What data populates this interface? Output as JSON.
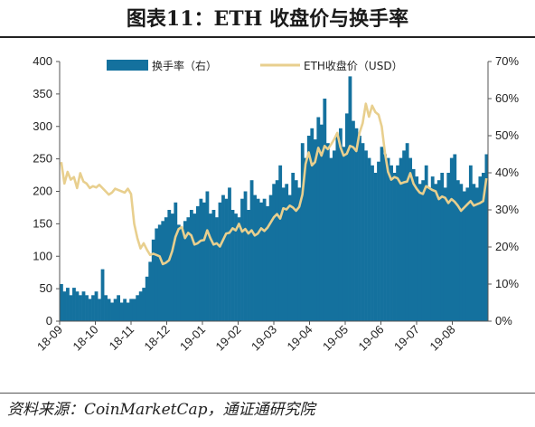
{
  "title": "图表11：ETH 收盘价与换手率",
  "source": "资料来源：CoinMarketCap，通证通研究院",
  "colors": {
    "bars": "#14719e",
    "line": "#e8cf8e",
    "axis": "#555555"
  },
  "chart_data": {
    "type": "bar+line",
    "x_tick_labels": [
      "18-09",
      "18-10",
      "18-11",
      "18-12",
      "19-01",
      "19-02",
      "19-03",
      "19-04",
      "19-05",
      "19-06",
      "19-07",
      "19-08"
    ],
    "left_axis": {
      "ticks": [
        "0",
        "50",
        "100",
        "150",
        "200",
        "250",
        "300",
        "350",
        "400"
      ],
      "ylim": [
        0,
        400
      ]
    },
    "right_axis": {
      "ticks": [
        "0%",
        "10%",
        "20%",
        "30%",
        "40%",
        "50%",
        "60%",
        "70%"
      ],
      "ylim": [
        0,
        70
      ]
    },
    "legend": {
      "position": "top",
      "entries": [
        "换手率（右）",
        "ETH收盘价（USD）"
      ]
    },
    "series": [
      {
        "name": "换手率（右）",
        "axis": "right",
        "type": "bar",
        "values_pct": [
          10,
          8,
          9,
          7,
          9,
          8,
          7,
          8,
          7,
          6,
          7,
          8,
          6,
          14,
          7,
          6,
          5,
          6,
          7,
          5,
          6,
          5,
          6,
          6,
          7,
          8,
          9,
          12,
          16,
          22,
          25,
          26,
          27,
          28,
          30,
          29,
          32,
          26,
          25,
          27,
          28,
          30,
          29,
          31,
          33,
          32,
          35,
          29,
          30,
          28,
          32,
          34,
          33,
          36,
          30,
          29,
          28,
          33,
          35,
          30,
          38,
          34,
          33,
          32,
          33,
          31,
          34,
          37,
          38,
          42,
          36,
          37,
          34,
          40,
          38,
          36,
          48,
          44,
          50,
          52,
          49,
          55,
          53,
          60,
          48,
          44,
          46,
          50,
          52,
          47,
          56,
          66,
          54,
          52,
          50,
          48,
          46,
          44,
          42,
          40,
          43,
          47,
          45,
          44,
          42,
          40,
          42,
          44,
          46,
          48,
          44,
          41,
          39,
          37,
          38,
          42,
          36,
          39,
          37,
          38,
          40,
          36,
          40,
          44,
          45,
          38,
          37,
          35,
          36,
          42,
          37,
          36,
          39,
          40,
          45
        ],
        "note": "approximate values in %, read from gridlines"
      },
      {
        "name": "ETH收盘价（USD）",
        "axis": "left",
        "type": "line",
        "values": [
          245,
          212,
          230,
          218,
          222,
          205,
          228,
          215,
          212,
          205,
          208,
          206,
          210,
          205,
          200,
          195,
          198,
          204,
          202,
          200,
          198,
          204,
          196,
          150,
          128,
          112,
          120,
          110,
          102,
          104,
          102,
          100,
          88,
          90,
          94,
          108,
          130,
          142,
          145,
          128,
          136,
          132,
          118,
          120,
          124,
          125,
          140,
          128,
          118,
          120,
          115,
          125,
          135,
          136,
          143,
          140,
          150,
          138,
          142,
          135,
          140,
          132,
          135,
          143,
          139,
          144,
          152,
          160,
          165,
          158,
          174,
          172,
          178,
          175,
          170,
          176,
          195,
          242,
          260,
          240,
          245,
          267,
          255,
          270,
          265,
          272,
          280,
          290,
          268,
          255,
          258,
          270,
          268,
          262,
          290,
          305,
          335,
          315,
          332,
          322,
          318,
          300,
          260,
          230,
          218,
          222,
          220,
          212,
          214,
          215,
          228,
          212,
          204,
          198,
          196,
          208,
          205,
          202,
          200,
          188,
          192,
          190,
          182,
          188,
          184,
          178,
          170,
          175,
          180,
          185,
          178,
          180,
          182,
          185,
          220
        ],
        "note": "approximate closing prices in USD, read from gridlines"
      }
    ]
  }
}
